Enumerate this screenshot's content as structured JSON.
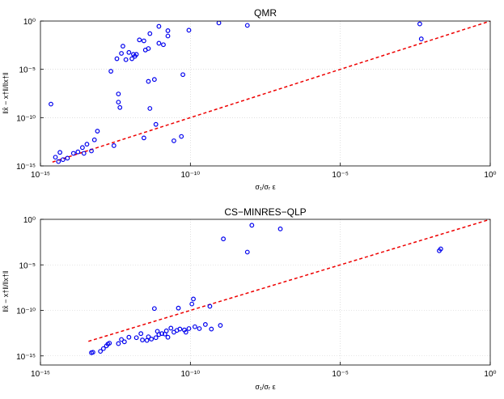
{
  "chart_data": [
    {
      "type": "scatter",
      "title": "QMR",
      "xlabel": "σ₁/σᵣ ε",
      "ylabel": "‖x̂ − x†‖/‖x†‖",
      "xscale": "log",
      "yscale": "log",
      "xlim_exp": [
        -15,
        0
      ],
      "ylim_exp": [
        -15,
        0
      ],
      "x_tick_labels": [
        "10⁻¹⁵",
        "10⁻¹⁰",
        "10⁻⁵",
        "10⁰"
      ],
      "y_tick_labels": [
        "10⁻¹⁵",
        "10⁻¹⁰",
        "10⁻⁵",
        "10⁰"
      ],
      "grid": true,
      "marker_color": "#0000ee",
      "line_color": "#ee0000",
      "reference_line": {
        "style": "dashed",
        "x_exp": [
          -14.6,
          0
        ],
        "y_exp": [
          -14.6,
          0
        ]
      },
      "points_log10": [
        [
          -14.65,
          -8.6
        ],
        [
          -14.5,
          -14.1
        ],
        [
          -14.4,
          -14.55
        ],
        [
          -14.35,
          -13.6
        ],
        [
          -14.25,
          -14.35
        ],
        [
          -14.1,
          -14.2
        ],
        [
          -13.9,
          -13.7
        ],
        [
          -13.75,
          -13.55
        ],
        [
          -13.6,
          -13.1
        ],
        [
          -13.55,
          -13.7
        ],
        [
          -13.45,
          -12.75
        ],
        [
          -13.3,
          -13.45
        ],
        [
          -13.2,
          -12.3
        ],
        [
          -13.1,
          -11.4
        ],
        [
          -12.65,
          -5.2
        ],
        [
          -12.55,
          -12.9
        ],
        [
          -12.45,
          -3.9
        ],
        [
          -12.4,
          -7.55
        ],
        [
          -12.4,
          -8.4
        ],
        [
          -12.35,
          -8.95
        ],
        [
          -12.3,
          -3.35
        ],
        [
          -12.25,
          -2.6
        ],
        [
          -12.15,
          -4.0
        ],
        [
          -12.05,
          -3.25
        ],
        [
          -11.95,
          -3.9
        ],
        [
          -11.9,
          -3.45
        ],
        [
          -11.85,
          -3.65
        ],
        [
          -11.8,
          -3.45
        ],
        [
          -11.7,
          -1.95
        ],
        [
          -11.55,
          -2.05
        ],
        [
          -11.55,
          -12.1
        ],
        [
          -11.5,
          -3.0
        ],
        [
          -11.4,
          -6.25
        ],
        [
          -11.4,
          -2.85
        ],
        [
          -11.35,
          -1.3
        ],
        [
          -11.35,
          -9.05
        ],
        [
          -11.2,
          -6.05
        ],
        [
          -11.15,
          -10.7
        ],
        [
          -11.05,
          -2.3
        ],
        [
          -11.05,
          -0.55
        ],
        [
          -10.9,
          -2.45
        ],
        [
          -10.75,
          -1.0
        ],
        [
          -10.75,
          -1.55
        ],
        [
          -10.55,
          -12.4
        ],
        [
          -10.3,
          -11.95
        ],
        [
          -10.25,
          -5.55
        ],
        [
          -10.05,
          -0.95
        ],
        [
          -9.05,
          -0.2
        ],
        [
          -8.1,
          -0.45
        ],
        [
          -2.35,
          -0.3
        ],
        [
          -2.3,
          -1.85
        ]
      ]
    },
    {
      "type": "scatter",
      "title": "CS−MINRES−QLP",
      "xlabel": "σ₁/σᵣ ε",
      "ylabel": "‖x̂ − x†‖/‖x†‖",
      "xscale": "log",
      "yscale": "log",
      "xlim_exp": [
        -15,
        0
      ],
      "ylim_exp": [
        -16,
        0
      ],
      "x_tick_labels": [
        "10⁻¹⁵",
        "10⁻¹⁰",
        "10⁻⁵",
        "10⁰"
      ],
      "y_tick_labels": [
        "10⁻¹⁵",
        "10⁻¹⁰",
        "10⁻⁵",
        "10⁰"
      ],
      "grid": true,
      "marker_color": "#0000ee",
      "line_color": "#ee0000",
      "reference_line": {
        "style": "dashed",
        "x_exp": [
          -13.4,
          0
        ],
        "y_exp": [
          -13.4,
          0
        ]
      },
      "points_log10": [
        [
          -13.3,
          -14.65
        ],
        [
          -13.25,
          -14.6
        ],
        [
          -13.0,
          -14.5
        ],
        [
          -12.9,
          -14.2
        ],
        [
          -12.8,
          -13.9
        ],
        [
          -12.75,
          -13.7
        ],
        [
          -12.7,
          -13.6
        ],
        [
          -12.4,
          -13.65
        ],
        [
          -12.3,
          -13.2
        ],
        [
          -12.2,
          -13.45
        ],
        [
          -12.05,
          -12.95
        ],
        [
          -11.8,
          -13.0
        ],
        [
          -11.65,
          -12.55
        ],
        [
          -11.6,
          -13.25
        ],
        [
          -11.45,
          -13.3
        ],
        [
          -11.4,
          -12.9
        ],
        [
          -11.3,
          -13.15
        ],
        [
          -11.2,
          -9.8
        ],
        [
          -11.15,
          -13.0
        ],
        [
          -11.1,
          -12.3
        ],
        [
          -11.05,
          -12.65
        ],
        [
          -10.95,
          -12.55
        ],
        [
          -10.85,
          -12.6
        ],
        [
          -10.8,
          -12.25
        ],
        [
          -10.75,
          -12.95
        ],
        [
          -10.65,
          -11.95
        ],
        [
          -10.55,
          -12.4
        ],
        [
          -10.45,
          -12.2
        ],
        [
          -10.4,
          -9.75
        ],
        [
          -10.35,
          -12.05
        ],
        [
          -10.2,
          -12.15
        ],
        [
          -10.15,
          -12.4
        ],
        [
          -10.05,
          -12.0
        ],
        [
          -9.95,
          -9.3
        ],
        [
          -9.9,
          -8.75
        ],
        [
          -9.85,
          -11.8
        ],
        [
          -9.7,
          -12.0
        ],
        [
          -9.5,
          -11.55
        ],
        [
          -9.35,
          -9.55
        ],
        [
          -9.3,
          -12.05
        ],
        [
          -9.0,
          -11.65
        ],
        [
          -8.9,
          -2.15
        ],
        [
          -8.1,
          -3.6
        ],
        [
          -7.95,
          -0.65
        ],
        [
          -7.0,
          -1.05
        ],
        [
          -1.7,
          -3.45
        ],
        [
          -1.65,
          -3.25
        ]
      ]
    }
  ]
}
